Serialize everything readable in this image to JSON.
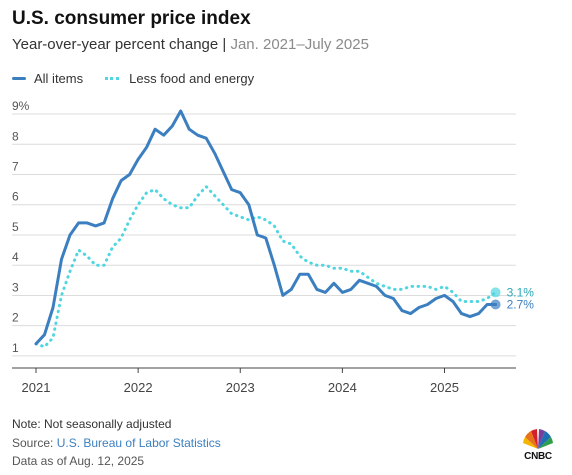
{
  "title": "U.S. consumer price index",
  "subtitle_main": "Year-over-year percent change | ",
  "subtitle_range": "Jan. 2021–July 2025",
  "note": "Note: Not seasonally adjusted",
  "source_label": "Source: ",
  "source_name": "U.S. Bureau of Labor Statistics",
  "data_as_of": "Data as of Aug. 12, 2025",
  "logo": {
    "text": "CNBC",
    "icon": "peacock-logo"
  },
  "chart_data": {
    "type": "line",
    "legend": "top-left",
    "grid": true,
    "xlim": [
      2021.0,
      2025.7
    ],
    "ylim": [
      0.6,
      9.2
    ],
    "x_ticks": [
      2021,
      2022,
      2023,
      2024,
      2025
    ],
    "x_tick_labels": [
      "2021",
      "2022",
      "2023",
      "2024",
      "2025"
    ],
    "y_ticks": [
      1,
      2,
      3,
      4,
      5,
      6,
      7,
      8,
      9
    ],
    "y_tick_labels": [
      "1",
      "2",
      "3",
      "4",
      "5",
      "6",
      "7",
      "8",
      "9%"
    ],
    "series": [
      {
        "name": "All items",
        "color": "#3c7fc0",
        "style": "solid",
        "end_label": "2.7%",
        "values": [
          1.4,
          1.7,
          2.6,
          4.2,
          5.0,
          5.4,
          5.4,
          5.3,
          5.4,
          6.2,
          6.8,
          7.0,
          7.5,
          7.9,
          8.5,
          8.3,
          8.6,
          9.1,
          8.5,
          8.3,
          8.2,
          7.7,
          7.1,
          6.5,
          6.4,
          6.0,
          5.0,
          4.9,
          4.0,
          3.0,
          3.2,
          3.7,
          3.7,
          3.2,
          3.1,
          3.4,
          3.1,
          3.2,
          3.5,
          3.4,
          3.3,
          3.0,
          2.9,
          2.5,
          2.4,
          2.6,
          2.7,
          2.9,
          3.0,
          2.8,
          2.4,
          2.3,
          2.4,
          2.7,
          2.7
        ]
      },
      {
        "name": "Less food and energy",
        "color": "#4fd6e0",
        "style": "dotted",
        "end_label": "3.1%",
        "values": [
          1.4,
          1.3,
          1.6,
          3.0,
          3.8,
          4.5,
          4.3,
          4.0,
          4.0,
          4.6,
          4.9,
          5.5,
          6.0,
          6.4,
          6.5,
          6.2,
          6.0,
          5.9,
          5.9,
          6.3,
          6.6,
          6.3,
          6.0,
          5.7,
          5.6,
          5.5,
          5.6,
          5.5,
          5.3,
          4.8,
          4.7,
          4.3,
          4.1,
          4.0,
          4.0,
          3.9,
          3.9,
          3.8,
          3.8,
          3.6,
          3.4,
          3.3,
          3.2,
          3.2,
          3.3,
          3.3,
          3.3,
          3.2,
          3.3,
          3.1,
          2.8,
          2.8,
          2.8,
          2.9,
          3.1
        ]
      }
    ]
  }
}
